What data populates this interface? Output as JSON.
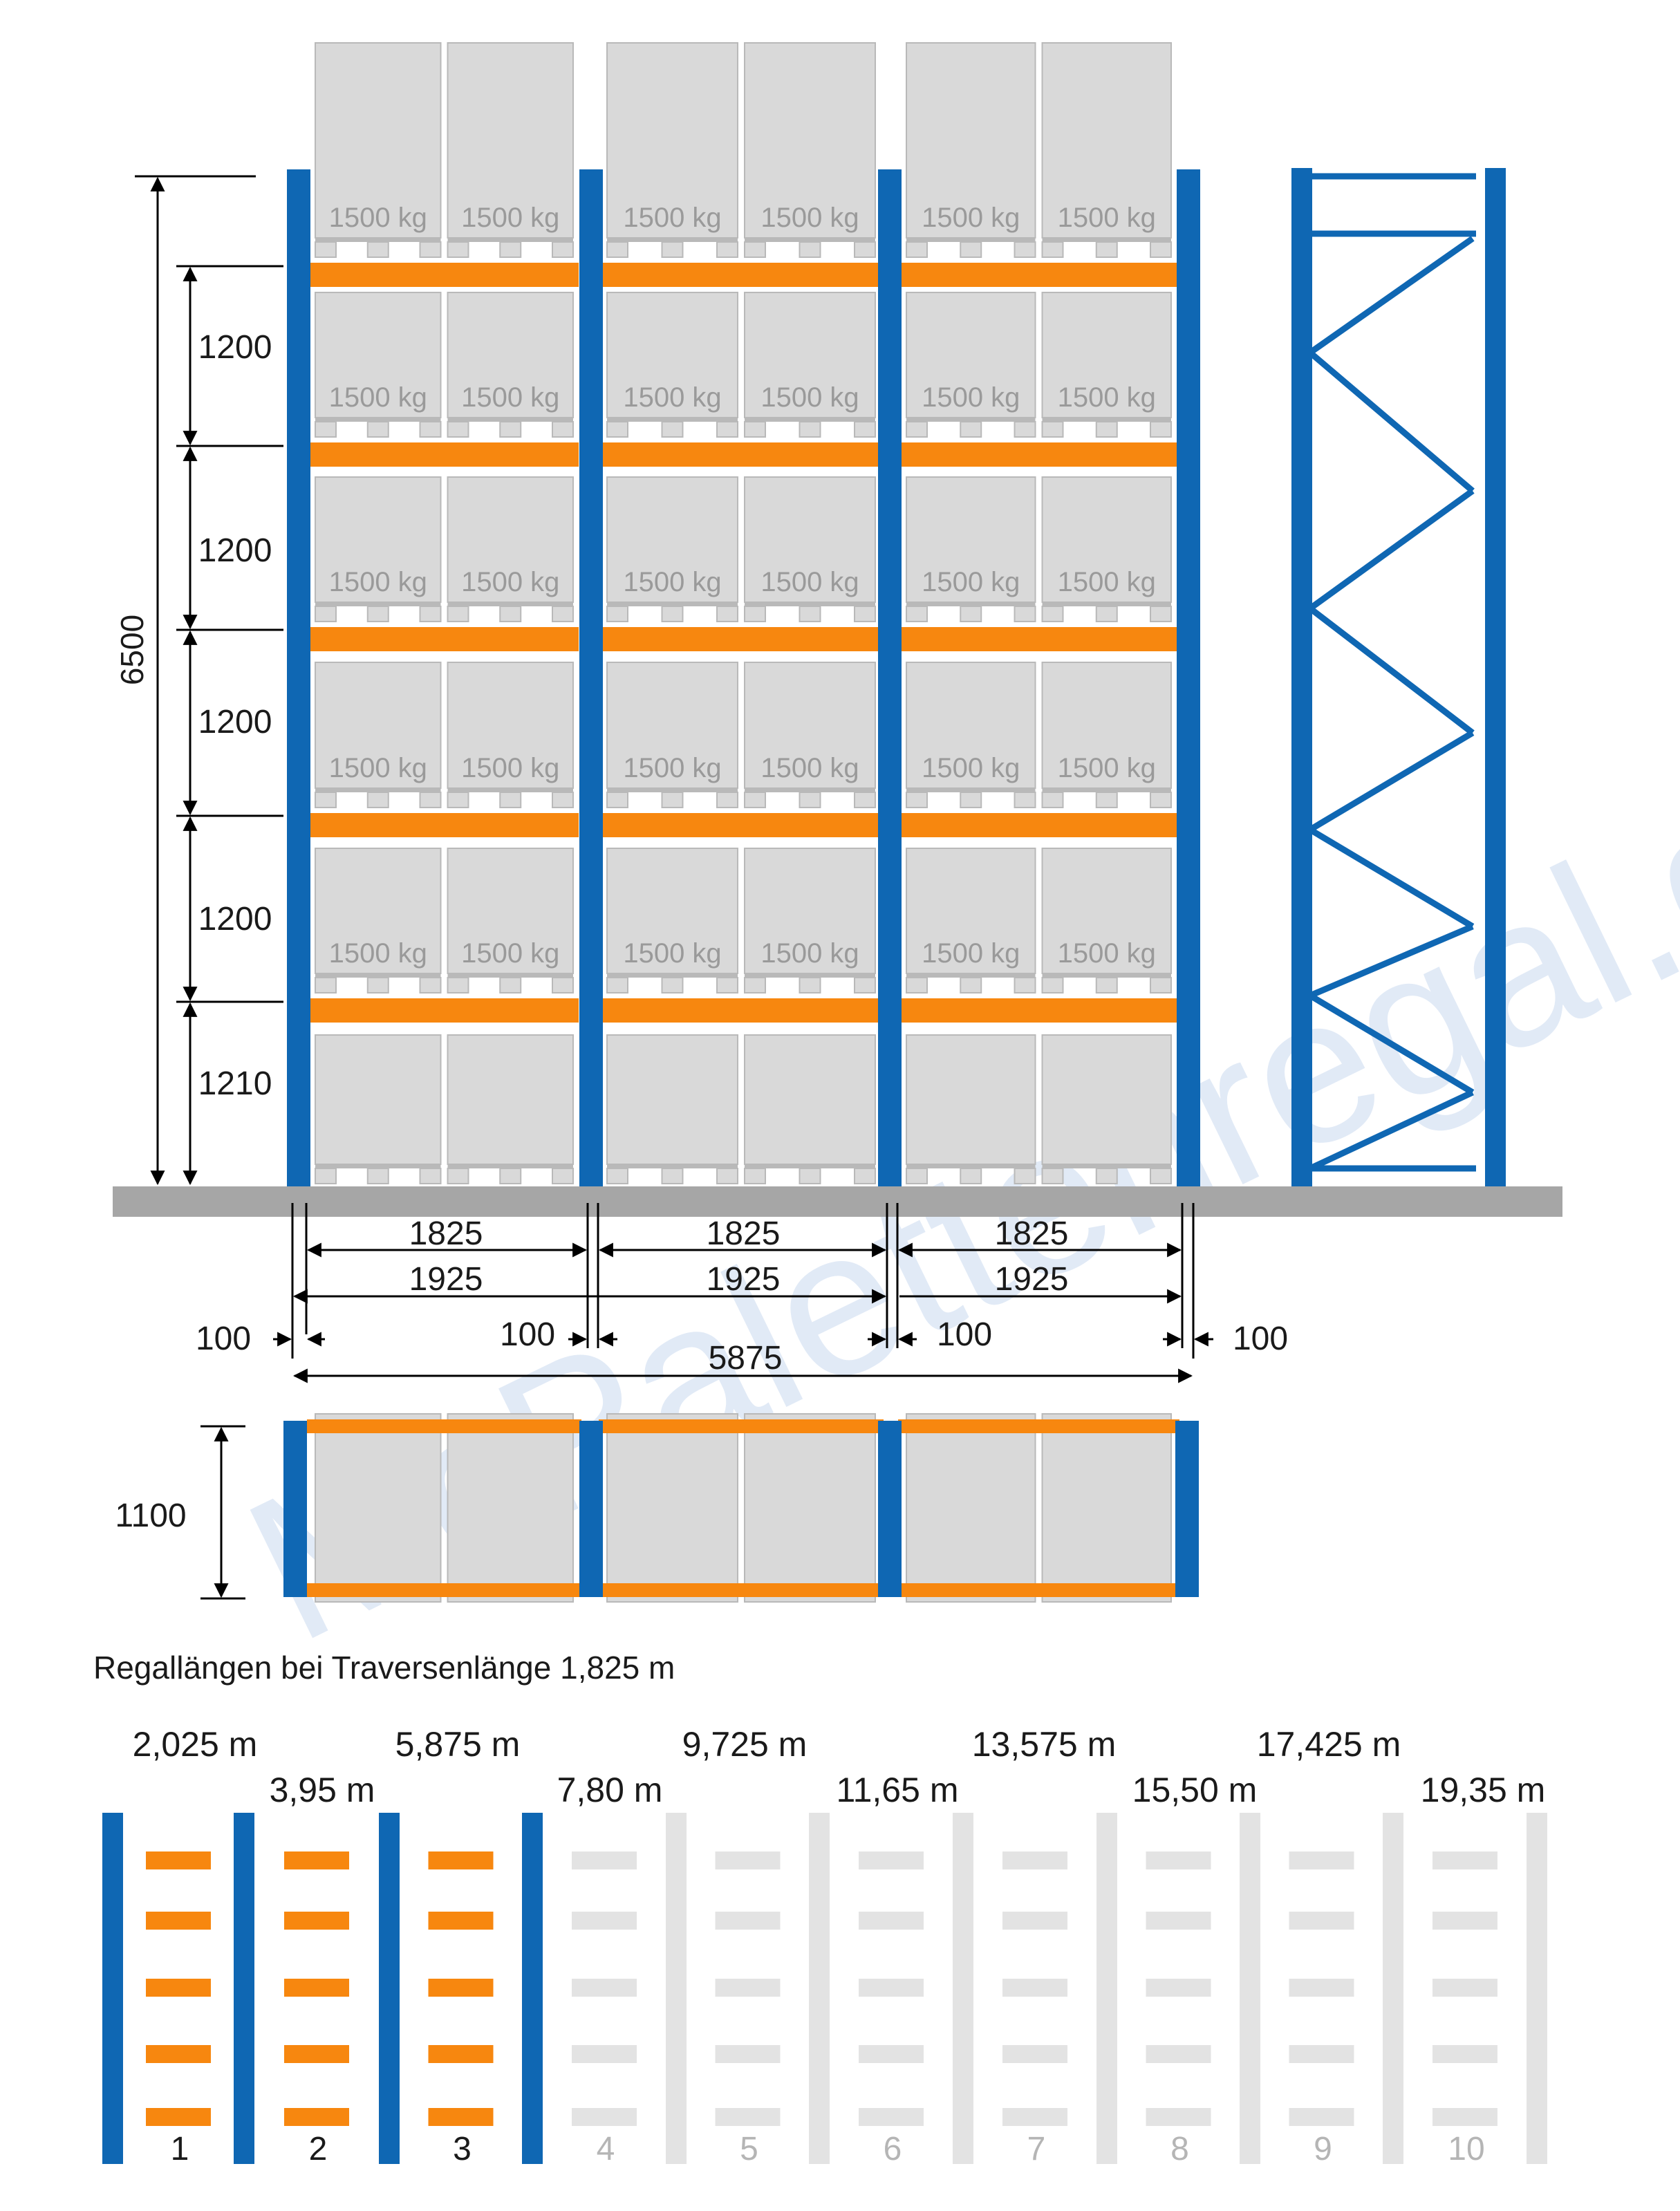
{
  "palette": {
    "upright": "#0f67b3",
    "beam": "#f7870f",
    "pallet": "#d9d9d9",
    "pallet_stroke": "#b9b9b9",
    "floor": "#a6a6a6",
    "faded": "#e3e3e3",
    "text": "#1a1a1a",
    "weight_text": "#9a9a9a",
    "watermark": "#c9d9ef"
  },
  "watermark": "McPalettenregal.de",
  "front_view": {
    "pallet_weight": "1500 kg",
    "total_height": "6500",
    "level_heights": [
      "1200",
      "1200",
      "1200",
      "1200",
      "1210"
    ]
  },
  "width_dims": {
    "beam_length": "1825",
    "bay_length": "1925",
    "upright_width": "100",
    "total_length": "5875"
  },
  "plan_view": {
    "depth": "1100"
  },
  "lengths_section": {
    "title": "Regallängen bei Traversenlänge 1,825 m",
    "lengths": [
      "2,025 m",
      "3,95 m",
      "5,875 m",
      "7,80 m",
      "9,725 m",
      "11,65 m",
      "13,575 m",
      "15,50 m",
      "17,425 m",
      "19,35 m"
    ],
    "bay_numbers": [
      "1",
      "2",
      "3",
      "4",
      "5",
      "6",
      "7",
      "8",
      "9",
      "10"
    ],
    "active_bays": 3
  }
}
